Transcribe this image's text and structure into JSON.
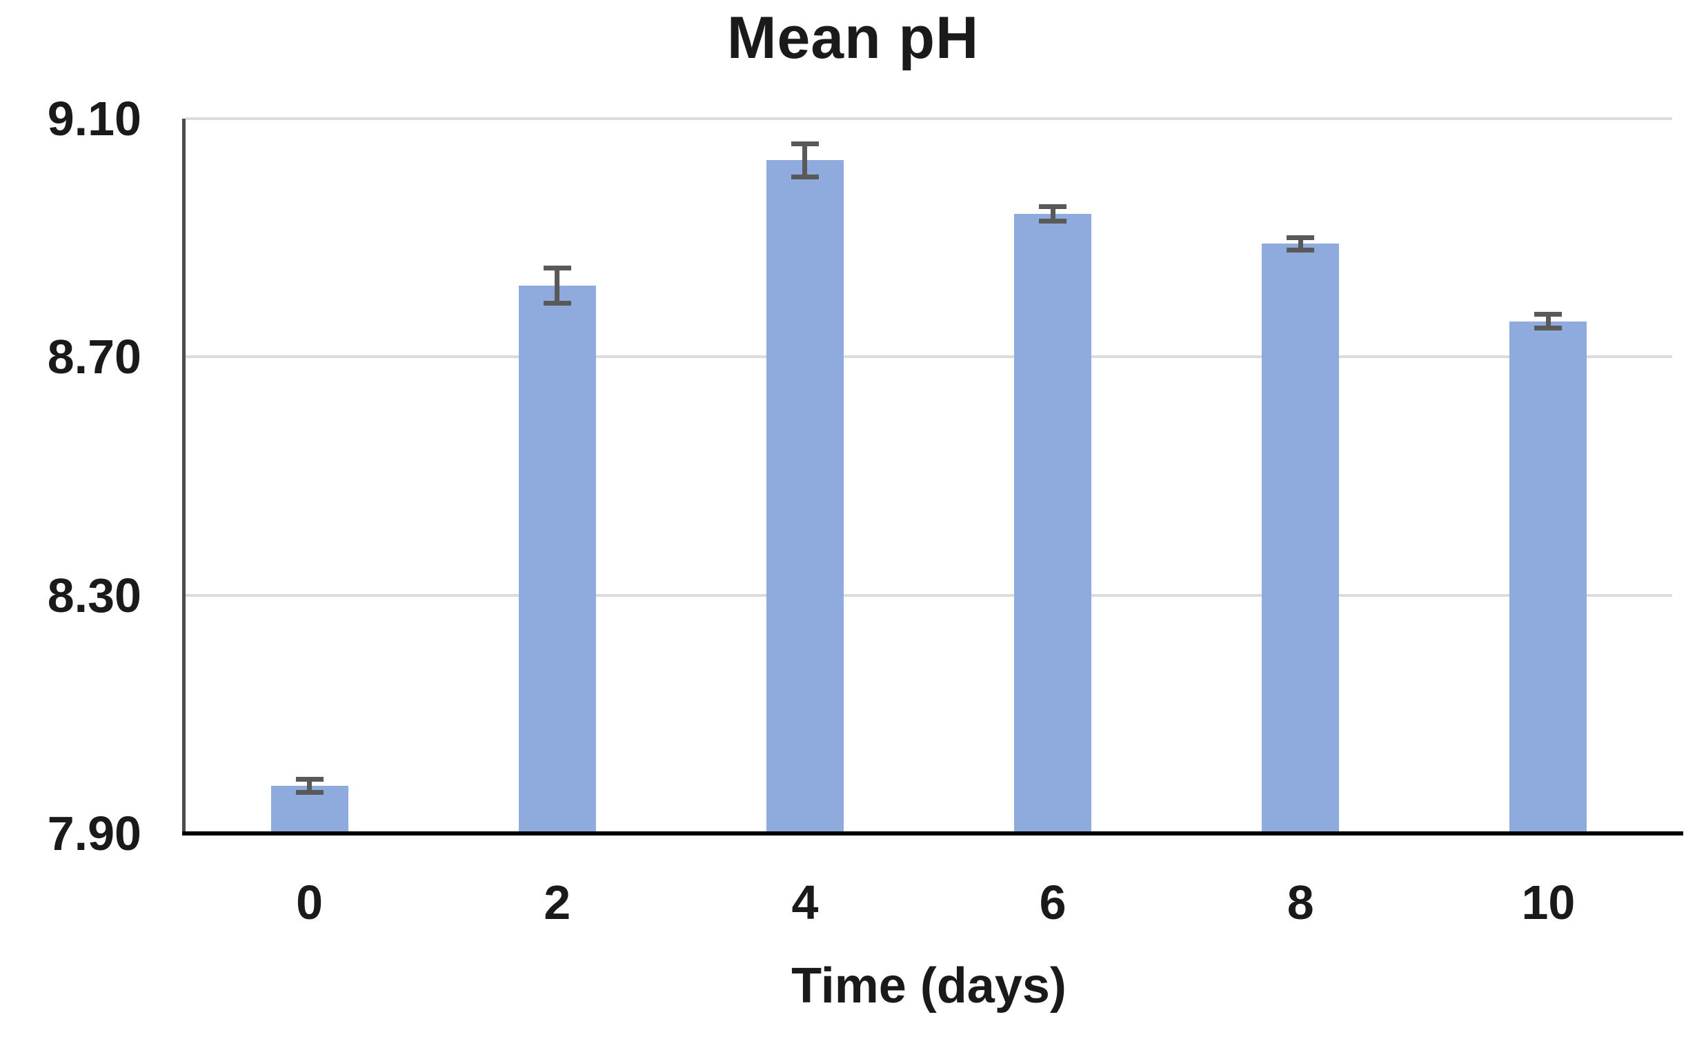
{
  "chart_data": {
    "type": "bar",
    "title": "Mean pH",
    "xlabel": "Time (days)",
    "ylabel": "",
    "categories": [
      "0",
      "2",
      "4",
      "6",
      "8",
      "10"
    ],
    "values": [
      7.98,
      8.82,
      9.03,
      8.94,
      8.89,
      8.76
    ],
    "error_bars": [
      0.012,
      0.03,
      0.028,
      0.013,
      0.011,
      0.012
    ],
    "ylim": [
      7.9,
      9.1
    ],
    "yticks": [
      "9.10",
      "8.70",
      "8.30",
      "7.90"
    ],
    "ytick_step": 0.4,
    "grid": "horizontal",
    "legend": "none",
    "colors": {
      "bar_fill": "#8FAADC",
      "error_bar": "#595959",
      "gridline": "#DCDCDC",
      "x_axis_line": "#000000",
      "y_axis_line": "#4D4D4D",
      "text": "#1A1A1A"
    }
  }
}
